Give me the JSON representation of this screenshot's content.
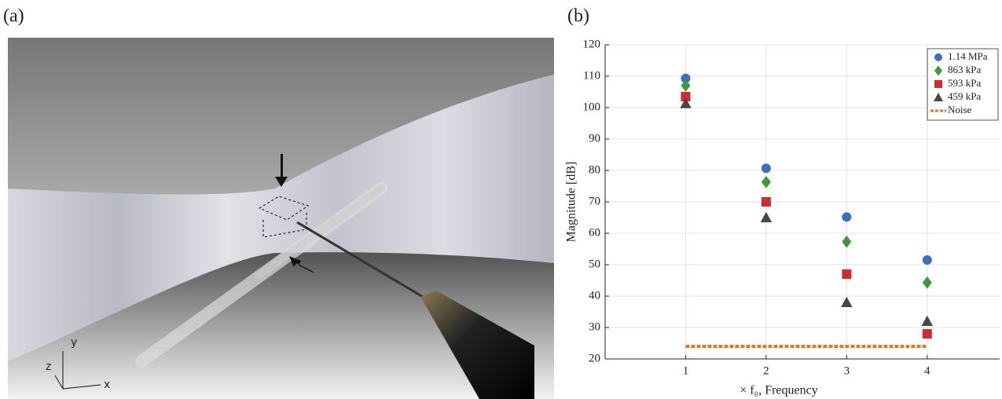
{
  "panel_labels": [
    "(a)",
    "(b)"
  ],
  "render": {
    "axis_labels": [
      "x",
      "y",
      "z"
    ]
  },
  "chart_data": {
    "type": "scatter",
    "x_label": "× f₀, Frequency",
    "y_label": "Magnitude [dB]",
    "x": [
      1,
      2,
      3,
      4
    ],
    "series": [
      {
        "name": "1.14 MPa",
        "color": "#3b6fc2",
        "marker": "circle",
        "values": [
          109.3,
          80.7,
          65.2,
          51.5
        ]
      },
      {
        "name": "863 kPa",
        "color": "#3a9a3c",
        "marker": "diamond",
        "values": [
          107,
          76.3,
          57.3,
          44.3
        ]
      },
      {
        "name": "593 kPa",
        "color": "#d42a2e",
        "marker": "square",
        "values": [
          103.5,
          70,
          47,
          28
        ]
      },
      {
        "name": "459 kPa",
        "color": "#474747",
        "marker": "triangle",
        "values": [
          101.3,
          65,
          38,
          32
        ]
      },
      {
        "name": "Noise",
        "color": "#e8781e",
        "marker": "dashed-line",
        "values": [
          24,
          24,
          24,
          24
        ]
      }
    ],
    "xlim": [
      0,
      4.9
    ],
    "xticks": [
      1,
      2,
      3,
      4
    ],
    "ylim": [
      20,
      120
    ],
    "yticks": [
      20,
      30,
      40,
      50,
      60,
      70,
      80,
      90,
      100,
      110,
      120
    ],
    "grid": true,
    "legend": "upper-right"
  }
}
